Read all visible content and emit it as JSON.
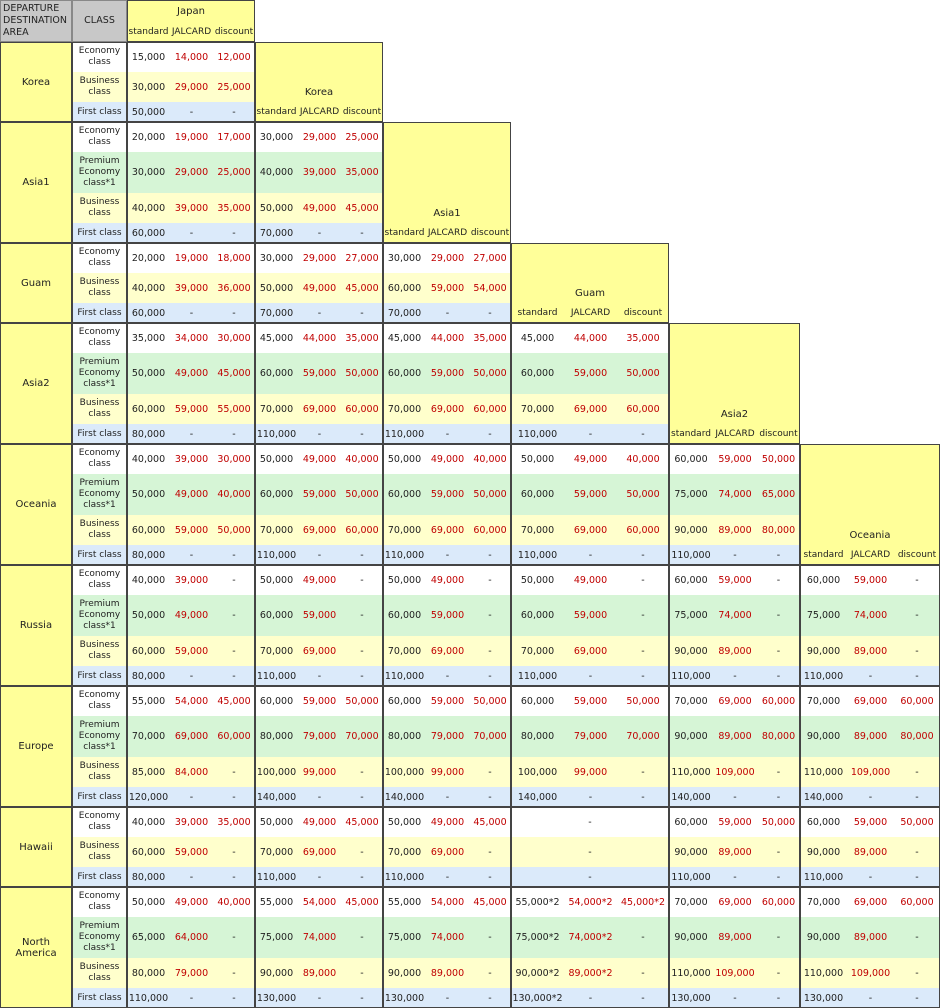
{
  "headers": {
    "departure_destination": "DEPARTURE DESTINATION AREA",
    "class": "CLASS"
  },
  "sub_labels": [
    "standard",
    "JALCARD",
    "discount"
  ],
  "departures": [
    "Japan",
    "Korea",
    "Asia1",
    "Guam",
    "Asia2",
    "Oceania"
  ],
  "class_labels": {
    "E": "Economy class",
    "P": "Premium Economy class*1",
    "B": "Business class",
    "F": "First class"
  },
  "destinations": [
    {
      "name": "Korea",
      "rows": [
        {
          "cls": "E",
          "vals": [
            [
              "15,000",
              "14,000",
              "12,000"
            ]
          ]
        },
        {
          "cls": "B",
          "vals": [
            [
              "30,000",
              "29,000",
              "25,000"
            ]
          ]
        },
        {
          "cls": "F",
          "vals": [
            [
              "50,000",
              "-",
              "-"
            ]
          ]
        }
      ]
    },
    {
      "name": "Asia1",
      "rows": [
        {
          "cls": "E",
          "vals": [
            [
              "20,000",
              "19,000",
              "17,000"
            ],
            [
              "30,000",
              "29,000",
              "25,000"
            ]
          ]
        },
        {
          "cls": "P",
          "vals": [
            [
              "30,000",
              "29,000",
              "25,000"
            ],
            [
              "40,000",
              "39,000",
              "35,000"
            ]
          ]
        },
        {
          "cls": "B",
          "vals": [
            [
              "40,000",
              "39,000",
              "35,000"
            ],
            [
              "50,000",
              "49,000",
              "45,000"
            ]
          ]
        },
        {
          "cls": "F",
          "vals": [
            [
              "60,000",
              "-",
              "-"
            ],
            [
              "70,000",
              "-",
              "-"
            ]
          ]
        }
      ]
    },
    {
      "name": "Guam",
      "rows": [
        {
          "cls": "E",
          "vals": [
            [
              "20,000",
              "19,000",
              "18,000"
            ],
            [
              "30,000",
              "29,000",
              "27,000"
            ],
            [
              "30,000",
              "29,000",
              "27,000"
            ]
          ]
        },
        {
          "cls": "B",
          "vals": [
            [
              "40,000",
              "39,000",
              "36,000"
            ],
            [
              "50,000",
              "49,000",
              "45,000"
            ],
            [
              "60,000",
              "59,000",
              "54,000"
            ]
          ]
        },
        {
          "cls": "F",
          "vals": [
            [
              "60,000",
              "-",
              "-"
            ],
            [
              "70,000",
              "-",
              "-"
            ],
            [
              "70,000",
              "-",
              "-"
            ]
          ]
        }
      ]
    },
    {
      "name": "Asia2",
      "rows": [
        {
          "cls": "E",
          "vals": [
            [
              "35,000",
              "34,000",
              "30,000"
            ],
            [
              "45,000",
              "44,000",
              "35,000"
            ],
            [
              "45,000",
              "44,000",
              "35,000"
            ],
            [
              "45,000",
              "44,000",
              "35,000"
            ]
          ]
        },
        {
          "cls": "P",
          "vals": [
            [
              "50,000",
              "49,000",
              "45,000"
            ],
            [
              "60,000",
              "59,000",
              "50,000"
            ],
            [
              "60,000",
              "59,000",
              "50,000"
            ],
            [
              "60,000",
              "59,000",
              "50,000"
            ]
          ]
        },
        {
          "cls": "B",
          "vals": [
            [
              "60,000",
              "59,000",
              "55,000"
            ],
            [
              "70,000",
              "69,000",
              "60,000"
            ],
            [
              "70,000",
              "69,000",
              "60,000"
            ],
            [
              "70,000",
              "69,000",
              "60,000"
            ]
          ]
        },
        {
          "cls": "F",
          "vals": [
            [
              "80,000",
              "-",
              "-"
            ],
            [
              "110,000",
              "-",
              "-"
            ],
            [
              "110,000",
              "-",
              "-"
            ],
            [
              "110,000",
              "-",
              "-"
            ]
          ]
        }
      ]
    },
    {
      "name": "Oceania",
      "rows": [
        {
          "cls": "E",
          "vals": [
            [
              "40,000",
              "39,000",
              "30,000"
            ],
            [
              "50,000",
              "49,000",
              "40,000"
            ],
            [
              "50,000",
              "49,000",
              "40,000"
            ],
            [
              "50,000",
              "49,000",
              "40,000"
            ],
            [
              "60,000",
              "59,000",
              "50,000"
            ]
          ]
        },
        {
          "cls": "P",
          "vals": [
            [
              "50,000",
              "49,000",
              "40,000"
            ],
            [
              "60,000",
              "59,000",
              "50,000"
            ],
            [
              "60,000",
              "59,000",
              "50,000"
            ],
            [
              "60,000",
              "59,000",
              "50,000"
            ],
            [
              "75,000",
              "74,000",
              "65,000"
            ]
          ]
        },
        {
          "cls": "B",
          "vals": [
            [
              "60,000",
              "59,000",
              "50,000"
            ],
            [
              "70,000",
              "69,000",
              "60,000"
            ],
            [
              "70,000",
              "69,000",
              "60,000"
            ],
            [
              "70,000",
              "69,000",
              "60,000"
            ],
            [
              "90,000",
              "89,000",
              "80,000"
            ]
          ]
        },
        {
          "cls": "F",
          "vals": [
            [
              "80,000",
              "-",
              "-"
            ],
            [
              "110,000",
              "-",
              "-"
            ],
            [
              "110,000",
              "-",
              "-"
            ],
            [
              "110,000",
              "-",
              "-"
            ],
            [
              "110,000",
              "-",
              "-"
            ]
          ]
        }
      ]
    },
    {
      "name": "Russia",
      "rows": [
        {
          "cls": "E",
          "vals": [
            [
              "40,000",
              "39,000",
              "-"
            ],
            [
              "50,000",
              "49,000",
              "-"
            ],
            [
              "50,000",
              "49,000",
              "-"
            ],
            [
              "50,000",
              "49,000",
              "-"
            ],
            [
              "60,000",
              "59,000",
              "-"
            ],
            [
              "60,000",
              "59,000",
              "-"
            ]
          ]
        },
        {
          "cls": "P",
          "vals": [
            [
              "50,000",
              "49,000",
              "-"
            ],
            [
              "60,000",
              "59,000",
              "-"
            ],
            [
              "60,000",
              "59,000",
              "-"
            ],
            [
              "60,000",
              "59,000",
              "-"
            ],
            [
              "75,000",
              "74,000",
              "-"
            ],
            [
              "75,000",
              "74,000",
              "-"
            ]
          ]
        },
        {
          "cls": "B",
          "vals": [
            [
              "60,000",
              "59,000",
              "-"
            ],
            [
              "70,000",
              "69,000",
              "-"
            ],
            [
              "70,000",
              "69,000",
              "-"
            ],
            [
              "70,000",
              "69,000",
              "-"
            ],
            [
              "90,000",
              "89,000",
              "-"
            ],
            [
              "90,000",
              "89,000",
              "-"
            ]
          ]
        },
        {
          "cls": "F",
          "vals": [
            [
              "80,000",
              "-",
              "-"
            ],
            [
              "110,000",
              "-",
              "-"
            ],
            [
              "110,000",
              "-",
              "-"
            ],
            [
              "110,000",
              "-",
              "-"
            ],
            [
              "110,000",
              "-",
              "-"
            ],
            [
              "110,000",
              "-",
              "-"
            ]
          ]
        }
      ]
    },
    {
      "name": "Europe",
      "rows": [
        {
          "cls": "E",
          "vals": [
            [
              "55,000",
              "54,000",
              "45,000"
            ],
            [
              "60,000",
              "59,000",
              "50,000"
            ],
            [
              "60,000",
              "59,000",
              "50,000"
            ],
            [
              "60,000",
              "59,000",
              "50,000"
            ],
            [
              "70,000",
              "69,000",
              "60,000"
            ],
            [
              "70,000",
              "69,000",
              "60,000"
            ]
          ]
        },
        {
          "cls": "P",
          "vals": [
            [
              "70,000",
              "69,000",
              "60,000"
            ],
            [
              "80,000",
              "79,000",
              "70,000"
            ],
            [
              "80,000",
              "79,000",
              "70,000"
            ],
            [
              "80,000",
              "79,000",
              "70,000"
            ],
            [
              "90,000",
              "89,000",
              "80,000"
            ],
            [
              "90,000",
              "89,000",
              "80,000"
            ]
          ]
        },
        {
          "cls": "B",
          "vals": [
            [
              "85,000",
              "84,000",
              "-"
            ],
            [
              "100,000",
              "99,000",
              "-"
            ],
            [
              "100,000",
              "99,000",
              "-"
            ],
            [
              "100,000",
              "99,000",
              "-"
            ],
            [
              "110,000",
              "109,000",
              "-"
            ],
            [
              "110,000",
              "109,000",
              "-"
            ]
          ]
        },
        {
          "cls": "F",
          "vals": [
            [
              "120,000",
              "-",
              "-"
            ],
            [
              "140,000",
              "-",
              "-"
            ],
            [
              "140,000",
              "-",
              "-"
            ],
            [
              "140,000",
              "-",
              "-"
            ],
            [
              "140,000",
              "-",
              "-"
            ],
            [
              "140,000",
              "-",
              "-"
            ]
          ]
        }
      ]
    },
    {
      "name": "Hawaii",
      "rows": [
        {
          "cls": "E",
          "vals": [
            [
              "40,000",
              "39,000",
              "35,000"
            ],
            [
              "50,000",
              "49,000",
              "45,000"
            ],
            [
              "50,000",
              "49,000",
              "45,000"
            ],
            [
              "-"
            ],
            [
              "60,000",
              "59,000",
              "50,000"
            ],
            [
              "60,000",
              "59,000",
              "50,000"
            ]
          ]
        },
        {
          "cls": "B",
          "vals": [
            [
              "60,000",
              "59,000",
              "-"
            ],
            [
              "70,000",
              "69,000",
              "-"
            ],
            [
              "70,000",
              "69,000",
              "-"
            ],
            [
              "-"
            ],
            [
              "90,000",
              "89,000",
              "-"
            ],
            [
              "90,000",
              "89,000",
              "-"
            ]
          ]
        },
        {
          "cls": "F",
          "vals": [
            [
              "80,000",
              "-",
              "-"
            ],
            [
              "110,000",
              "-",
              "-"
            ],
            [
              "110,000",
              "-",
              "-"
            ],
            [
              "-"
            ],
            [
              "110,000",
              "-",
              "-"
            ],
            [
              "110,000",
              "-",
              "-"
            ]
          ]
        }
      ]
    },
    {
      "name": "North America",
      "rows": [
        {
          "cls": "E",
          "vals": [
            [
              "50,000",
              "49,000",
              "40,000"
            ],
            [
              "55,000",
              "54,000",
              "45,000"
            ],
            [
              "55,000",
              "54,000",
              "45,000"
            ],
            [
              "55,000*2",
              "54,000*2",
              "45,000*2"
            ],
            [
              "70,000",
              "69,000",
              "60,000"
            ],
            [
              "70,000",
              "69,000",
              "60,000"
            ]
          ]
        },
        {
          "cls": "P",
          "vals": [
            [
              "65,000",
              "64,000",
              "-"
            ],
            [
              "75,000",
              "74,000",
              "-"
            ],
            [
              "75,000",
              "74,000",
              "-"
            ],
            [
              "75,000*2",
              "74,000*2",
              "-"
            ],
            [
              "90,000",
              "89,000",
              "-"
            ],
            [
              "90,000",
              "89,000",
              "-"
            ]
          ]
        },
        {
          "cls": "B",
          "vals": [
            [
              "80,000",
              "79,000",
              "-"
            ],
            [
              "90,000",
              "89,000",
              "-"
            ],
            [
              "90,000",
              "89,000",
              "-"
            ],
            [
              "90,000*2",
              "89,000*2",
              "-"
            ],
            [
              "110,000",
              "109,000",
              "-"
            ],
            [
              "110,000",
              "109,000",
              "-"
            ]
          ]
        },
        {
          "cls": "F",
          "vals": [
            [
              "110,000",
              "-",
              "-"
            ],
            [
              "130,000",
              "-",
              "-"
            ],
            [
              "130,000",
              "-",
              "-"
            ],
            [
              "130,000*2",
              "-",
              "-"
            ],
            [
              "130,000",
              "-",
              "-"
            ],
            [
              "130,000",
              "-",
              "-"
            ]
          ]
        }
      ]
    }
  ]
}
